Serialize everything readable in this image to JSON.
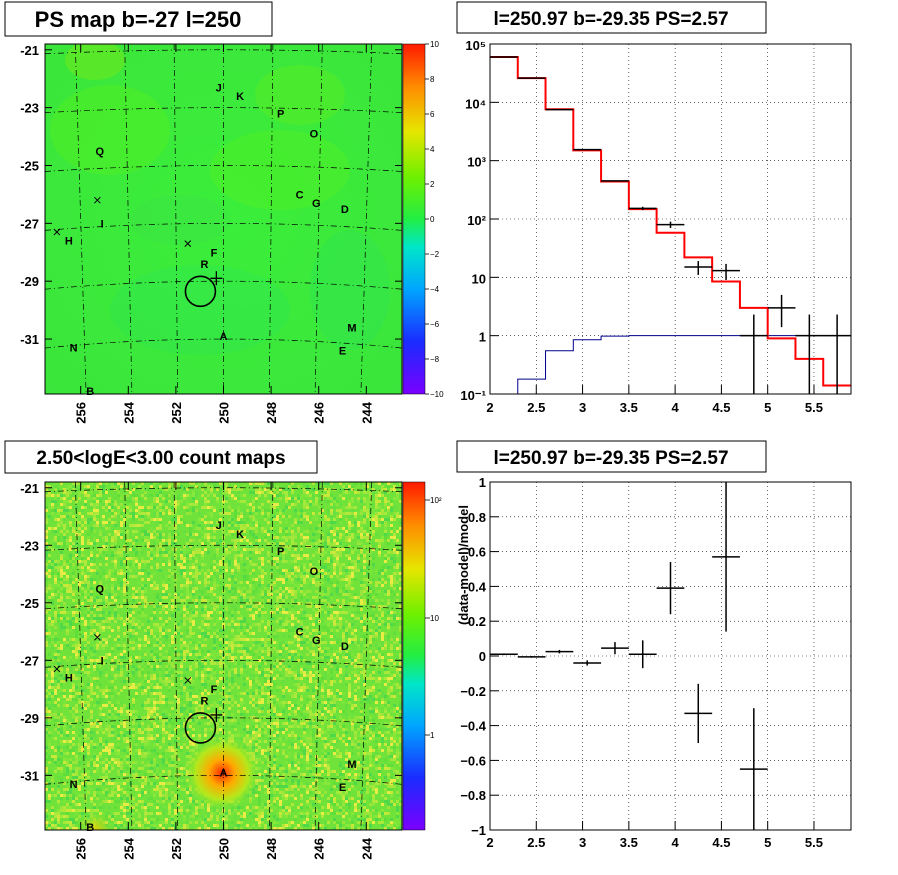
{
  "panels": {
    "map_title": "PS map b=-27 l=250",
    "count_title": "2.50<logE<3.00 count maps",
    "spectrum_title": "l=250.97 b=-29.35 PS=2.57",
    "residual_title": "l=250.97 b=-29.35 PS=2.57"
  },
  "colors": {
    "data": "#000000",
    "model": "#ff0000",
    "background_model": "#00008b",
    "map_green": "#33ee33",
    "grid": "#000000"
  },
  "maps": {
    "x_ticks": [
      "256",
      "254",
      "252",
      "250",
      "248",
      "246",
      "244"
    ],
    "y_ticks": [
      "-21",
      "-23",
      "-25",
      "-27",
      "-29",
      "-31"
    ],
    "ps_colorbar_ticks": [
      "10",
      "8",
      "6",
      "4",
      "2",
      "0",
      "−2",
      "−4",
      "−6",
      "−8",
      "−10"
    ],
    "count_colorbar_ticks": [
      "10²",
      "10",
      "1"
    ],
    "markers": [
      "J",
      "K",
      "P",
      "O",
      "Q",
      "C",
      "G",
      "D",
      "H",
      "I",
      "F",
      "R",
      "M",
      "N",
      "E",
      "A",
      "B"
    ]
  },
  "chart_data": [
    {
      "type": "heatmap",
      "title": "PS map b=-27 l=250",
      "x_range": [
        257.5,
        242.5
      ],
      "y_range": [
        -20.8,
        -32.9
      ],
      "colorbar_range": [
        -10,
        10
      ],
      "sources": [
        {
          "label": "J",
          "l": 250.2,
          "b": -22.3
        },
        {
          "label": "K",
          "l": 249.3,
          "b": -22.6
        },
        {
          "label": "P",
          "l": 247.6,
          "b": -23.2
        },
        {
          "label": "O",
          "l": 246.2,
          "b": -23.9
        },
        {
          "label": "Q",
          "l": 255.2,
          "b": -24.5
        },
        {
          "label": "C",
          "l": 246.8,
          "b": -26.0
        },
        {
          "label": "G",
          "l": 246.1,
          "b": -26.3
        },
        {
          "label": "D",
          "l": 244.9,
          "b": -26.5
        },
        {
          "label": "H",
          "l": 256.5,
          "b": -27.6
        },
        {
          "label": "I",
          "l": 255.1,
          "b": -27.0
        },
        {
          "label": "F",
          "l": 250.4,
          "b": -28.0
        },
        {
          "label": "R",
          "l": 250.8,
          "b": -28.4
        },
        {
          "label": "M",
          "l": 244.6,
          "b": -30.6
        },
        {
          "label": "N",
          "l": 256.3,
          "b": -31.3
        },
        {
          "label": "E",
          "l": 245.0,
          "b": -31.4
        },
        {
          "label": "A",
          "l": 250.0,
          "b": -30.9
        },
        {
          "label": "B",
          "l": 255.6,
          "b": -32.8
        }
      ]
    },
    {
      "type": "heatmap",
      "title": "2.50<logE<3.00 count maps",
      "x_range": [
        257.5,
        242.5
      ],
      "y_range": [
        -20.8,
        -32.9
      ],
      "colorbar_scale": "log"
    },
    {
      "type": "line",
      "title": "l=250.97 b=-29.35 PS=2.57",
      "xlabel": "",
      "ylabel": "",
      "xlim": [
        2,
        5.9
      ],
      "ylim": [
        0.1,
        100000
      ],
      "yscale": "log",
      "grid": true,
      "data_points": [
        {
          "x": 2.15,
          "y": 60000,
          "yerr_lo": 0,
          "yerr_hi": 0
        },
        {
          "x": 2.45,
          "y": 26000,
          "yerr_lo": 0,
          "yerr_hi": 0
        },
        {
          "x": 2.75,
          "y": 7500,
          "yerr_lo": 0,
          "yerr_hi": 0
        },
        {
          "x": 3.05,
          "y": 1550,
          "yerr_lo": 0,
          "yerr_hi": 0
        },
        {
          "x": 3.35,
          "y": 450,
          "yerr_lo": 0,
          "yerr_hi": 0
        },
        {
          "x": 3.65,
          "y": 152,
          "yerr_lo": 10,
          "yerr_hi": 10
        },
        {
          "x": 3.95,
          "y": 80,
          "yerr_lo": 10,
          "yerr_hi": 10
        },
        {
          "x": 4.25,
          "y": 15,
          "yerr_lo": 4,
          "yerr_hi": 4
        },
        {
          "x": 4.55,
          "y": 13,
          "yerr_lo": 4,
          "yerr_hi": 4
        },
        {
          "x": 4.85,
          "y": 1,
          "yerr_lo": 0.9,
          "yerr_hi": 1.3
        },
        {
          "x": 5.15,
          "y": 3,
          "yerr_lo": 1.6,
          "yerr_hi": 2
        },
        {
          "x": 5.45,
          "y": 1,
          "yerr_lo": 0.9,
          "yerr_hi": 1.3
        },
        {
          "x": 5.75,
          "y": 1,
          "yerr_lo": 0.9,
          "yerr_hi": 1.3
        }
      ],
      "model_steps": {
        "edges": [
          2.0,
          2.3,
          2.6,
          2.9,
          3.2,
          3.5,
          3.8,
          4.1,
          4.4,
          4.7,
          5.0,
          5.3,
          5.6,
          5.9
        ],
        "values": [
          60000,
          26000,
          7600,
          1500,
          440,
          148,
          58,
          22,
          8.5,
          3.0,
          0.9,
          0.4,
          0.14
        ]
      },
      "ps_steps": {
        "edges": [
          2.0,
          2.3,
          2.6,
          2.9,
          3.2,
          3.5,
          3.8,
          4.1,
          4.4,
          4.7,
          5.0,
          5.3,
          5.6,
          5.9
        ],
        "values": [
          0.1,
          0.18,
          0.55,
          0.85,
          0.98,
          1.0,
          1.0,
          1.0,
          1.0,
          1.0,
          1.0,
          1.0,
          1.0
        ]
      },
      "x_ticks": [
        "2",
        "2.5",
        "3",
        "3.5",
        "4",
        "4.5",
        "5",
        "5.5"
      ],
      "y_ticks": [
        "10⁻¹",
        "1",
        "10",
        "10²",
        "10³",
        "10⁴",
        "10⁵"
      ]
    },
    {
      "type": "scatter",
      "title": "l=250.97 b=-29.35 PS=2.57",
      "xlabel": "",
      "ylabel": "(data-model)/model",
      "xlim": [
        2,
        5.9
      ],
      "ylim": [
        -1,
        1
      ],
      "grid": true,
      "points": [
        {
          "x": 2.15,
          "y": 0.01,
          "yerr": 0.005
        },
        {
          "x": 2.45,
          "y": -0.005,
          "yerr": 0.005
        },
        {
          "x": 2.75,
          "y": 0.025,
          "yerr": 0.01
        },
        {
          "x": 3.05,
          "y": -0.04,
          "yerr": 0.015
        },
        {
          "x": 3.35,
          "y": 0.045,
          "yerr": 0.035
        },
        {
          "x": 3.65,
          "y": 0.01,
          "yerr": 0.08
        },
        {
          "x": 3.95,
          "y": 0.39,
          "yerr": 0.15
        },
        {
          "x": 4.25,
          "y": -0.33,
          "yerr": 0.17
        },
        {
          "x": 4.55,
          "y": 0.57,
          "yerr": 0.43
        },
        {
          "x": 4.85,
          "y": -0.65,
          "yerr": 0.35
        }
      ],
      "x_ticks": [
        "2",
        "2.5",
        "3",
        "3.5",
        "4",
        "4.5",
        "5",
        "5.5"
      ],
      "y_ticks": [
        "1",
        "0.8",
        "0.6",
        "0.4",
        "0.2",
        "0",
        "−0.2",
        "−0.4",
        "−0.6",
        "−0.8",
        "−1"
      ]
    }
  ]
}
